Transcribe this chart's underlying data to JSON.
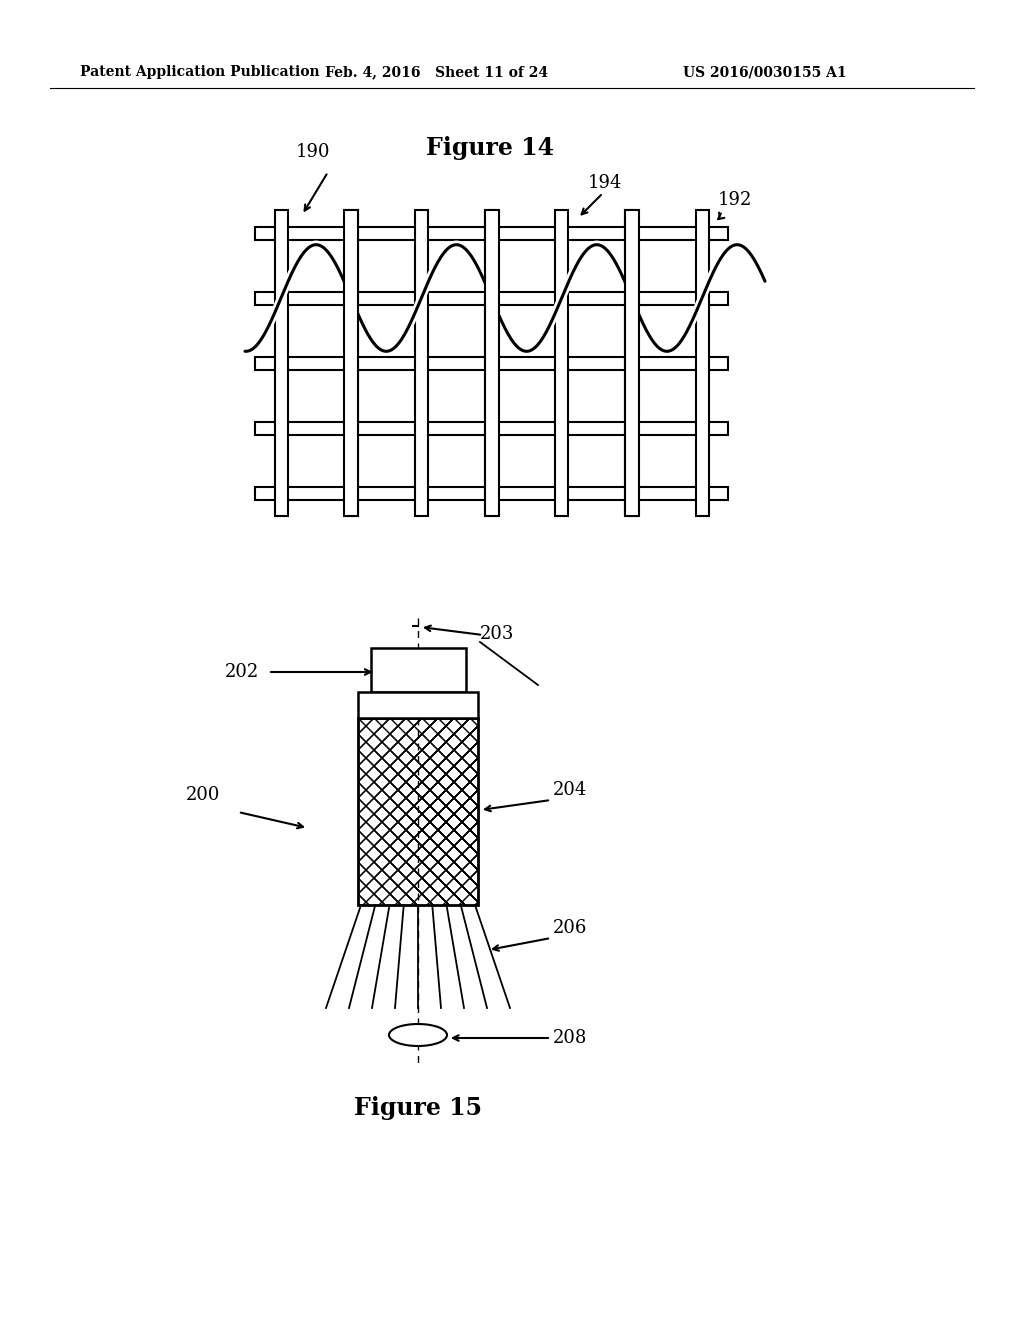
{
  "background_color": "#ffffff",
  "header_left": "Patent Application Publication",
  "header_mid": "Feb. 4, 2016   Sheet 11 of 24",
  "header_right": "US 2016/0030155 A1",
  "fig14_title": "Figure 14",
  "fig14_label_190": "190",
  "fig14_label_194": "194",
  "fig14_label_192": "192",
  "fig15_title": "Figure 15",
  "fig15_label_200": "200",
  "fig15_label_202": "202",
  "fig15_label_203": "203",
  "fig15_label_204": "204",
  "fig15_label_206": "206",
  "fig15_label_208": "208",
  "line_color": "#000000"
}
